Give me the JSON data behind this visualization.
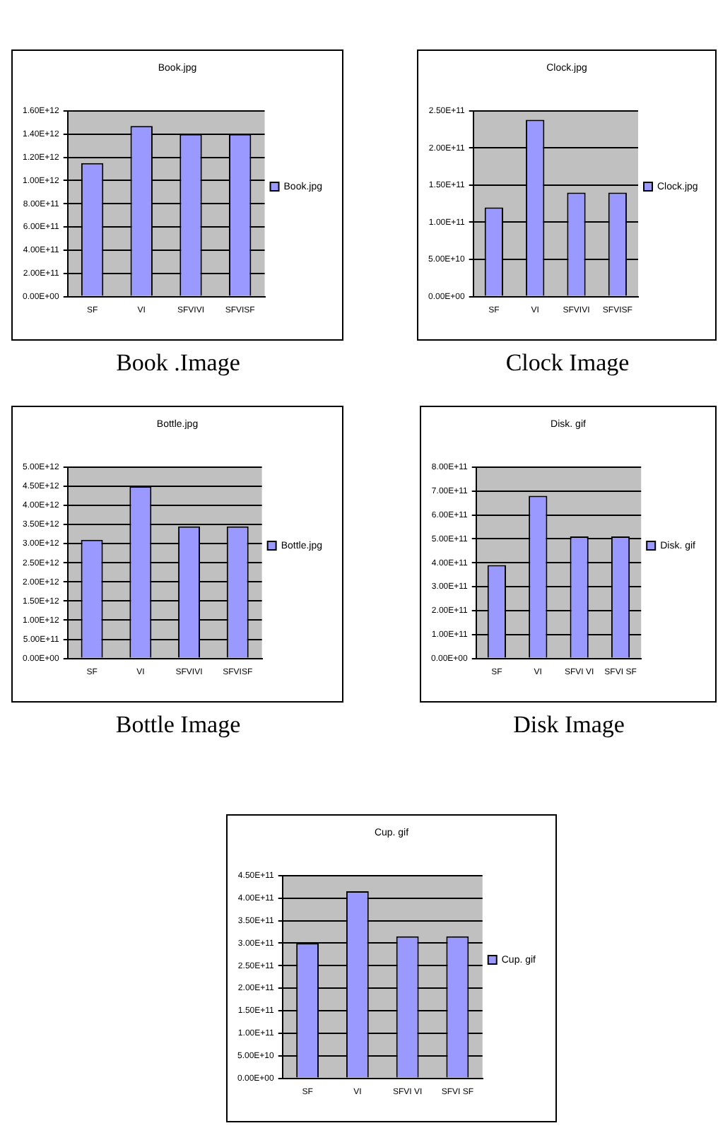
{
  "chart_data": [
    {
      "type": "bar",
      "title": "Book.jpg",
      "categories": [
        "SF",
        "VI",
        "SFVIVI",
        "SFVISF"
      ],
      "series": [
        {
          "name": "Book.jpg",
          "color": "#9999ff",
          "values": [
            1150000000000.0,
            1470000000000.0,
            1400000000000.0,
            1400000000000.0
          ]
        }
      ],
      "ylim": [
        0,
        1600000000000.0
      ],
      "yticks": [
        {
          "value": 0,
          "label": "0.00E+00"
        },
        {
          "value": 200000000000.0,
          "label": "2.00E+11"
        },
        {
          "value": 400000000000.0,
          "label": "4.00E+11"
        },
        {
          "value": 600000000000.0,
          "label": "6.00E+11"
        },
        {
          "value": 800000000000.0,
          "label": "8.00E+11"
        },
        {
          "value": 1000000000000.0,
          "label": "1.00E+12"
        },
        {
          "value": 1200000000000.0,
          "label": "1.20E+12"
        },
        {
          "value": 1400000000000.0,
          "label": "1.40E+12"
        },
        {
          "value": 1600000000000.0,
          "label": "1.60E+12"
        }
      ],
      "grid": "y",
      "legend": "right",
      "annotations": [
        "Book .Image"
      ]
    },
    {
      "type": "bar",
      "title": "Clock.jpg",
      "categories": [
        "SF",
        "VI",
        "SFVIVI",
        "SFVISF"
      ],
      "series": [
        {
          "name": "Clock.jpg",
          "color": "#9999ff",
          "values": [
            120000000000.0,
            238000000000.0,
            140000000000.0,
            140000000000.0
          ]
        }
      ],
      "ylim": [
        0,
        250000000000.0
      ],
      "yticks": [
        {
          "value": 0,
          "label": "0.00E+00"
        },
        {
          "value": 50000000000.0,
          "label": "5.00E+10"
        },
        {
          "value": 100000000000.0,
          "label": "1.00E+11"
        },
        {
          "value": 150000000000.0,
          "label": "1.50E+11"
        },
        {
          "value": 200000000000.0,
          "label": "2.00E+11"
        },
        {
          "value": 250000000000.0,
          "label": "2.50E+11"
        }
      ],
      "grid": "y",
      "legend": "right",
      "annotations": [
        "Clock Image"
      ]
    },
    {
      "type": "bar",
      "title": "Bottle.jpg",
      "categories": [
        "SF",
        "VI",
        "SFVIVI",
        "SFVISF"
      ],
      "series": [
        {
          "name": "Bottle.jpg",
          "color": "#9999ff",
          "values": [
            3100000000000.0,
            4500000000000.0,
            3450000000000.0,
            3450000000000.0
          ]
        }
      ],
      "ylim": [
        0,
        5000000000000.0
      ],
      "yticks": [
        {
          "value": 0,
          "label": "0.00E+00"
        },
        {
          "value": 500000000000.0,
          "label": "5.00E+11"
        },
        {
          "value": 1000000000000.0,
          "label": "1.00E+12"
        },
        {
          "value": 1500000000000.0,
          "label": "1.50E+12"
        },
        {
          "value": 2000000000000.0,
          "label": "2.00E+12"
        },
        {
          "value": 2500000000000.0,
          "label": "2.50E+12"
        },
        {
          "value": 3000000000000.0,
          "label": "3.00E+12"
        },
        {
          "value": 3500000000000.0,
          "label": "3.50E+12"
        },
        {
          "value": 4000000000000.0,
          "label": "4.00E+12"
        },
        {
          "value": 4500000000000.0,
          "label": "4.50E+12"
        },
        {
          "value": 5000000000000.0,
          "label": "5.00E+12"
        }
      ],
      "grid": "y",
      "legend": "right",
      "annotations": [
        "Bottle Image"
      ]
    },
    {
      "type": "bar",
      "title": "Disk. gif",
      "categories": [
        "SF",
        "VI",
        "SFVI VI",
        "SFVI SF"
      ],
      "series": [
        {
          "name": "Disk. gif",
          "color": "#9999ff",
          "values": [
            390000000000.0,
            680000000000.0,
            510000000000.0,
            510000000000.0
          ]
        }
      ],
      "ylim": [
        0,
        800000000000.0
      ],
      "yticks": [
        {
          "value": 0,
          "label": "0.00E+00"
        },
        {
          "value": 100000000000.0,
          "label": "1.00E+11"
        },
        {
          "value": 200000000000.0,
          "label": "2.00E+11"
        },
        {
          "value": 300000000000.0,
          "label": "3.00E+11"
        },
        {
          "value": 400000000000.0,
          "label": "4.00E+11"
        },
        {
          "value": 500000000000.0,
          "label": "5.00E+11"
        },
        {
          "value": 600000000000.0,
          "label": "6.00E+11"
        },
        {
          "value": 700000000000.0,
          "label": "7.00E+11"
        },
        {
          "value": 800000000000.0,
          "label": "8.00E+11"
        }
      ],
      "grid": "y",
      "legend": "right",
      "annotations": [
        "Disk Image"
      ]
    },
    {
      "type": "bar",
      "title": "Cup. gif",
      "categories": [
        "SF",
        "VI",
        "SFVI VI",
        "SFVI SF"
      ],
      "series": [
        {
          "name": "Cup. gif",
          "color": "#9999ff",
          "values": [
            300000000000.0,
            415000000000.0,
            315000000000.0,
            315000000000.0
          ]
        }
      ],
      "ylim": [
        0,
        450000000000.0
      ],
      "yticks": [
        {
          "value": 0,
          "label": "0.00E+00"
        },
        {
          "value": 50000000000.0,
          "label": "5.00E+10"
        },
        {
          "value": 100000000000.0,
          "label": "1.00E+11"
        },
        {
          "value": 150000000000.0,
          "label": "1.50E+11"
        },
        {
          "value": 200000000000.0,
          "label": "2.00E+11"
        },
        {
          "value": 250000000000.0,
          "label": "2.50E+11"
        },
        {
          "value": 300000000000.0,
          "label": "3.00E+11"
        },
        {
          "value": 350000000000.0,
          "label": "3.50E+11"
        },
        {
          "value": 400000000000.0,
          "label": "4.00E+11"
        },
        {
          "value": 450000000000.0,
          "label": "4.50E+11"
        }
      ],
      "grid": "y",
      "legend": "right"
    }
  ]
}
